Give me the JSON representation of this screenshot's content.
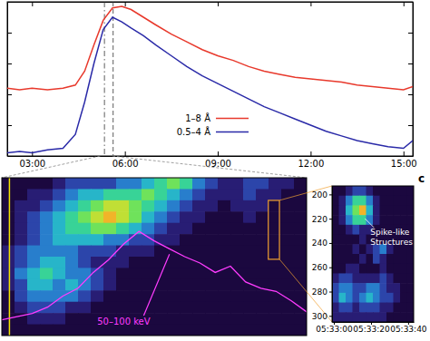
{
  "chart_data": [
    {
      "type": "line",
      "x": [
        2.2,
        2.6,
        3.0,
        3.5,
        4.0,
        4.4,
        4.7,
        5.0,
        5.3,
        5.6,
        5.9,
        6.2,
        6.6,
        7.0,
        7.5,
        8.0,
        8.5,
        9.0,
        9.5,
        10.0,
        10.5,
        11.0,
        11.5,
        12.0,
        12.5,
        13.0,
        13.5,
        14.0,
        14.5,
        15.0,
        15.3
      ],
      "series": [
        {
          "name": "1–8 Å",
          "color": "#e8392c",
          "values": [
            0.44,
            0.43,
            0.44,
            0.43,
            0.44,
            0.46,
            0.55,
            0.72,
            0.88,
            0.96,
            0.97,
            0.95,
            0.9,
            0.85,
            0.79,
            0.74,
            0.69,
            0.65,
            0.62,
            0.58,
            0.55,
            0.53,
            0.51,
            0.5,
            0.49,
            0.48,
            0.46,
            0.45,
            0.44,
            0.43,
            0.45
          ]
        },
        {
          "name": "0.5–4 Å",
          "color": "#2a2aa8",
          "values": [
            0.02,
            0.03,
            0.02,
            0.04,
            0.05,
            0.14,
            0.35,
            0.6,
            0.82,
            0.9,
            0.87,
            0.83,
            0.78,
            0.72,
            0.65,
            0.58,
            0.52,
            0.47,
            0.42,
            0.37,
            0.32,
            0.28,
            0.24,
            0.2,
            0.16,
            0.13,
            0.1,
            0.08,
            0.06,
            0.05,
            0.1
          ]
        }
      ],
      "xlim": [
        2.2,
        15.3
      ],
      "xticks": [
        {
          "value": 3,
          "label": "03:00"
        },
        {
          "value": 6,
          "label": "06:00"
        },
        {
          "value": 9,
          "label": "09:00"
        },
        {
          "value": 12,
          "label": "12:00"
        },
        {
          "value": 15,
          "label": "15:00"
        }
      ],
      "ylim": [
        0,
        1
      ],
      "yticks": [
        0.2,
        0.4,
        0.6,
        0.8
      ],
      "tick_labels": "x",
      "legend": "center",
      "vlines": [
        5.34,
        5.62
      ]
    },
    {
      "type": "heatmap",
      "xlim": [
        5.2,
        5.6
      ],
      "ylim": [
        450,
        150
      ],
      "zlim": [
        0,
        1
      ],
      "tick_labels": false,
      "cells": [
        [
          0.1,
          0.1,
          0.1,
          0.1,
          0.2,
          0.3,
          0.3,
          0.3,
          0.3,
          0.4,
          0.4,
          0.5,
          0.6,
          0.7,
          0.6,
          0.4,
          0.3,
          0.2,
          0.2,
          0.3,
          0.3,
          0.2,
          0.2,
          0.1
        ],
        [
          0.1,
          0.1,
          0.2,
          0.2,
          0.3,
          0.4,
          0.5,
          0.5,
          0.6,
          0.6,
          0.6,
          0.7,
          0.6,
          0.5,
          0.4,
          0.3,
          0.2,
          0.2,
          0.2,
          0.3,
          0.2,
          0.2,
          0.1,
          0.1
        ],
        [
          0.1,
          0.2,
          0.2,
          0.3,
          0.4,
          0.5,
          0.6,
          0.7,
          0.8,
          0.8,
          0.7,
          0.6,
          0.5,
          0.4,
          0.3,
          0.2,
          0.2,
          0.1,
          0.2,
          0.2,
          0.2,
          0.1,
          0.1,
          0.1
        ],
        [
          0.1,
          0.2,
          0.3,
          0.4,
          0.5,
          0.6,
          0.7,
          0.8,
          0.9,
          0.8,
          0.7,
          0.5,
          0.4,
          0.3,
          0.2,
          0.2,
          0.1,
          0.1,
          0.1,
          0.2,
          0.1,
          0.1,
          0.1,
          0.1
        ],
        [
          0.1,
          0.2,
          0.3,
          0.4,
          0.5,
          0.6,
          0.6,
          0.7,
          0.7,
          0.6,
          0.5,
          0.4,
          0.3,
          0.2,
          0.2,
          0.1,
          0.1,
          0.1,
          0.1,
          0.1,
          0.1,
          0.1,
          0.1,
          0.1
        ],
        [
          0.1,
          0.2,
          0.3,
          0.4,
          0.5,
          0.5,
          0.5,
          0.5,
          0.4,
          0.4,
          0.3,
          0.3,
          0.2,
          0.2,
          0.1,
          0.1,
          0.1,
          0.1,
          0.1,
          0.1,
          0.1,
          0.1,
          0.1,
          0.1
        ],
        [
          0.2,
          0.3,
          0.4,
          0.4,
          0.4,
          0.4,
          0.3,
          0.3,
          0.3,
          0.2,
          0.2,
          0.2,
          0.1,
          0.1,
          0.1,
          0.1,
          0.1,
          0.1,
          0.1,
          0.1,
          0.1,
          0.1,
          0.1,
          0.1
        ],
        [
          0.2,
          0.3,
          0.4,
          0.5,
          0.5,
          0.4,
          0.3,
          0.2,
          0.2,
          0.2,
          0.1,
          0.1,
          0.1,
          0.1,
          0.1,
          0.1,
          0.1,
          0.1,
          0.1,
          0.1,
          0.1,
          0.1,
          0.1,
          0.1
        ],
        [
          0.2,
          0.4,
          0.5,
          0.6,
          0.5,
          0.4,
          0.4,
          0.3,
          0.2,
          0.1,
          0.1,
          0.1,
          0.1,
          0.1,
          0.1,
          0.1,
          0.1,
          0.1,
          0.1,
          0.1,
          0.1,
          0.1,
          0.1,
          0.1
        ],
        [
          0.2,
          0.3,
          0.5,
          0.5,
          0.4,
          0.5,
          0.4,
          0.3,
          0.2,
          0.1,
          0.1,
          0.1,
          0.1,
          0.1,
          0.1,
          0.1,
          0.1,
          0.1,
          0.1,
          0.1,
          0.1,
          0.1,
          0.1,
          0.1
        ],
        [
          0.1,
          0.3,
          0.4,
          0.4,
          0.4,
          0.4,
          0.3,
          0.2,
          0.1,
          0.1,
          0.1,
          0.1,
          0.1,
          0.1,
          0.1,
          0.1,
          0.1,
          0.1,
          0.1,
          0.1,
          0.1,
          0.1,
          0.1,
          0.1
        ],
        [
          0.1,
          0.2,
          0.3,
          0.3,
          0.3,
          0.2,
          0.2,
          0.1,
          0.1,
          0.1,
          0.1,
          0.1,
          0.1,
          0.1,
          0.1,
          0.1,
          0.1,
          0.1,
          0.1,
          0.1,
          0.1,
          0.1,
          0.1,
          0.1
        ],
        [
          0.1,
          0.1,
          0.2,
          0.2,
          0.2,
          0.1,
          0.1,
          0.1,
          0.1,
          0.1,
          0.1,
          0.1,
          0.1,
          0.1,
          0.1,
          0.1,
          0.1,
          0.1,
          0.1,
          0.1,
          0.1,
          0.1,
          0.1,
          0.1
        ],
        [
          0.1,
          0.1,
          0.1,
          0.1,
          0.1,
          0.1,
          0.1,
          0.1,
          0.1,
          0.1,
          0.1,
          0.1,
          0.1,
          0.1,
          0.1,
          0.1,
          0.1,
          0.1,
          0.1,
          0.1,
          0.1,
          0.1,
          0.1,
          0.1
        ]
      ],
      "x": [
        5.2,
        5.22,
        5.24,
        5.26,
        5.28,
        5.3,
        5.32,
        5.34,
        5.36,
        5.38,
        5.4,
        5.42,
        5.44,
        5.46,
        5.48,
        5.5,
        5.52,
        5.54,
        5.56,
        5.58,
        5.6
      ],
      "series": [
        {
          "name": "50–100 keV",
          "color": "#ff3cff",
          "axis": "y2",
          "values": [
            10,
            12,
            14,
            18,
            25,
            30,
            40,
            48,
            58,
            66,
            60,
            55,
            50,
            46,
            40,
            44,
            34,
            30,
            28,
            22,
            15
          ]
        }
      ],
      "y2lim": [
        0,
        100
      ],
      "vlines": [
        5.21
      ]
    },
    {
      "type": "heatmap",
      "title": "c",
      "xlim": [
        19979,
        20023
      ],
      "xticks": [
        {
          "value": 19980,
          "label": "05:33:00"
        },
        {
          "value": 20000,
          "label": "05:33:20"
        },
        {
          "value": 20020,
          "label": "05:33:40"
        }
      ],
      "ylim": [
        305,
        193
      ],
      "yticks": [
        200,
        220,
        240,
        260,
        280,
        300
      ],
      "zlim": [
        0,
        1
      ],
      "cells": [
        [
          0.1,
          0.1,
          0.2,
          0.3,
          0.3,
          0.2,
          0.1,
          0.1,
          0.1,
          0.1,
          0.1,
          0.1
        ],
        [
          0.1,
          0.2,
          0.4,
          0.6,
          0.6,
          0.4,
          0.2,
          0.1,
          0.1,
          0.1,
          0.1,
          0.1
        ],
        [
          0.1,
          0.2,
          0.5,
          0.7,
          0.9,
          0.5,
          0.2,
          0.1,
          0.1,
          0.1,
          0.1,
          0.1
        ],
        [
          0.1,
          0.2,
          0.4,
          0.6,
          0.6,
          0.4,
          0.2,
          0.1,
          0.1,
          0.1,
          0.1,
          0.1
        ],
        [
          0.1,
          0.1,
          0.2,
          0.3,
          0.2,
          0.2,
          0.1,
          0.1,
          0.1,
          0.1,
          0.1,
          0.1
        ],
        [
          0.1,
          0.1,
          0.1,
          0.1,
          0.2,
          0.1,
          0.1,
          0.1,
          0.1,
          0.1,
          0.1,
          0.1
        ],
        [
          0.1,
          0.1,
          0.1,
          0.2,
          0.1,
          0.2,
          0.3,
          0.4,
          0.2,
          0.1,
          0.1,
          0.1
        ],
        [
          0.1,
          0.1,
          0.1,
          0.1,
          0.2,
          0.1,
          0.3,
          0.2,
          0.1,
          0.1,
          0.1,
          0.1
        ],
        [
          0.1,
          0.1,
          0.2,
          0.2,
          0.1,
          0.1,
          0.1,
          0.2,
          0.1,
          0.1,
          0.1,
          0.1
        ],
        [
          0.2,
          0.3,
          0.3,
          0.2,
          0.2,
          0.2,
          0.2,
          0.3,
          0.2,
          0.1,
          0.1,
          0.1
        ],
        [
          0.3,
          0.4,
          0.4,
          0.3,
          0.3,
          0.4,
          0.4,
          0.3,
          0.2,
          0.2,
          0.1,
          0.1
        ],
        [
          0.3,
          0.5,
          0.4,
          0.3,
          0.4,
          0.5,
          0.4,
          0.3,
          0.3,
          0.2,
          0.1,
          0.1
        ],
        [
          0.2,
          0.3,
          0.3,
          0.2,
          0.3,
          0.3,
          0.3,
          0.2,
          0.2,
          0.1,
          0.1,
          0.1
        ],
        [
          0.2,
          0.2,
          0.2,
          0.2,
          0.2,
          0.2,
          0.2,
          0.2,
          0.1,
          0.1,
          0.1,
          0.1
        ]
      ],
      "annotation": [
        "Spike-like",
        "Structures"
      ]
    }
  ]
}
